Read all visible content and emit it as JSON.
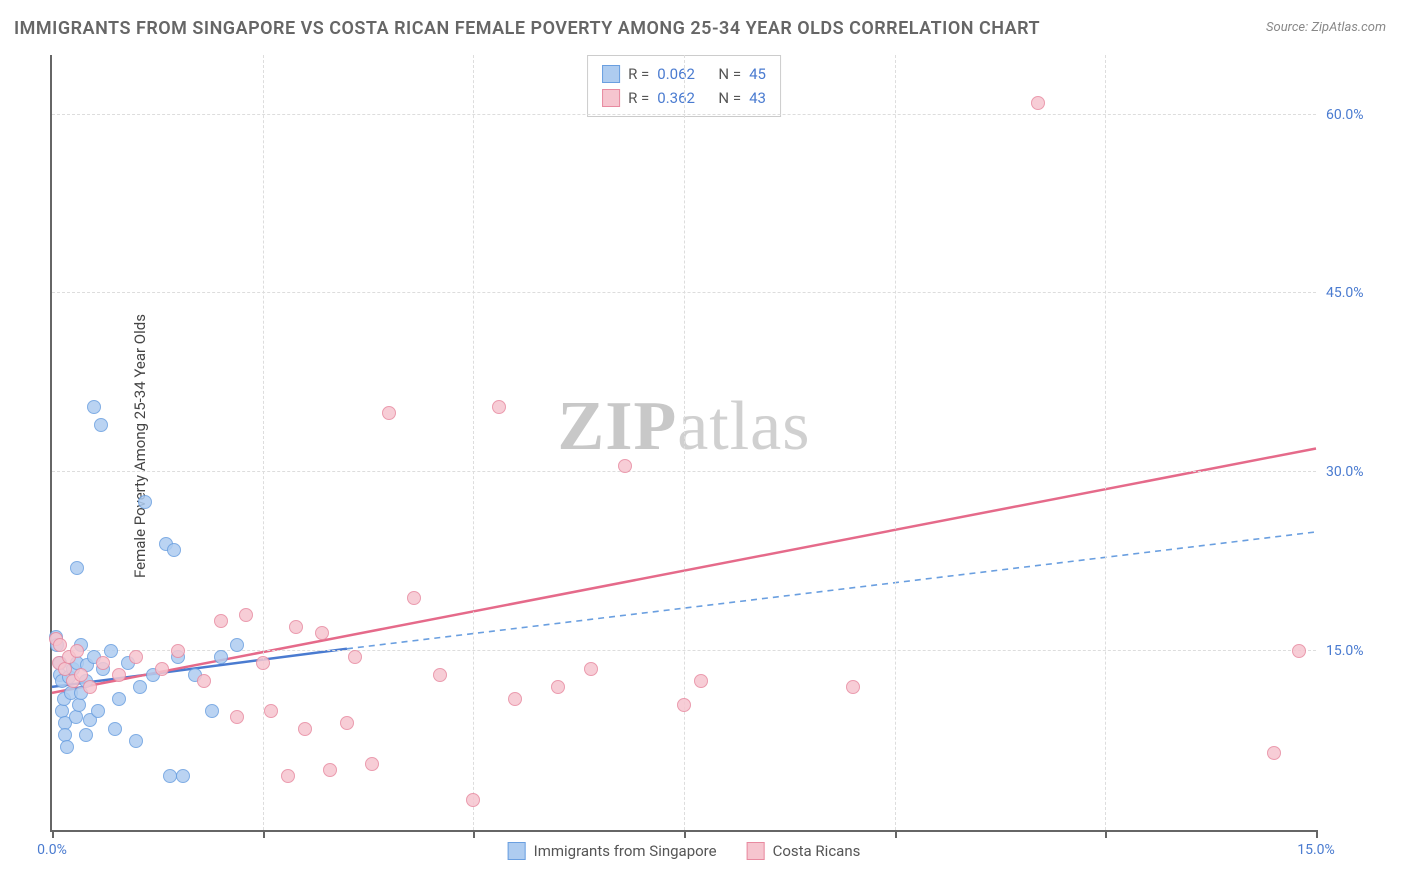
{
  "title": "IMMIGRANTS FROM SINGAPORE VS COSTA RICAN FEMALE POVERTY AMONG 25-34 YEAR OLDS CORRELATION CHART",
  "source_prefix": "Source: ",
  "source_name": "ZipAtlas.com",
  "y_axis_label": "Female Poverty Among 25-34 Year Olds",
  "watermark_bold": "ZIP",
  "watermark_rest": "atlas",
  "chart": {
    "type": "scatter",
    "xlim": [
      0,
      15
    ],
    "ylim": [
      0,
      65
    ],
    "x_ticks": [
      0,
      2.5,
      5,
      7.5,
      10,
      12.5,
      15
    ],
    "x_tick_labels": {
      "0": "0.0%",
      "15": "15.0%"
    },
    "y_ticks": [
      15,
      30,
      45,
      60
    ],
    "y_tick_labels": {
      "15": "15.0%",
      "30": "30.0%",
      "45": "45.0%",
      "60": "60.0%"
    },
    "background_color": "#ffffff",
    "grid_color": "#dddddd",
    "axis_color": "#666666",
    "axis_label_color": "#4a7bd0",
    "marker_radius": 7,
    "series": [
      {
        "id": "singapore",
        "label": "Immigrants from Singapore",
        "fill": "#aeccf0",
        "stroke": "#6a9fe0",
        "r_label": "R =",
        "r_value": "0.062",
        "n_label": "N =",
        "n_value": "45",
        "trend": {
          "x1": 0,
          "y1": 12.0,
          "x2": 3.5,
          "y2": 15.2,
          "dash_x2": 15,
          "dash_y2": 25.0,
          "width": 2.5
        },
        "points": [
          [
            0.05,
            16.2
          ],
          [
            0.06,
            15.5
          ],
          [
            0.1,
            14.0
          ],
          [
            0.1,
            13.0
          ],
          [
            0.12,
            12.5
          ],
          [
            0.12,
            10.0
          ],
          [
            0.14,
            11.0
          ],
          [
            0.15,
            9.0
          ],
          [
            0.16,
            8.0
          ],
          [
            0.18,
            7.0
          ],
          [
            0.2,
            12.8
          ],
          [
            0.22,
            11.5
          ],
          [
            0.25,
            13.5
          ],
          [
            0.28,
            9.5
          ],
          [
            0.3,
            14.0
          ],
          [
            0.3,
            22.0
          ],
          [
            0.32,
            10.5
          ],
          [
            0.35,
            11.5
          ],
          [
            0.35,
            15.5
          ],
          [
            0.4,
            8.0
          ],
          [
            0.4,
            12.5
          ],
          [
            0.42,
            13.8
          ],
          [
            0.45,
            9.2
          ],
          [
            0.5,
            14.5
          ],
          [
            0.5,
            35.5
          ],
          [
            0.55,
            10.0
          ],
          [
            0.58,
            34.0
          ],
          [
            0.6,
            13.5
          ],
          [
            0.7,
            15.0
          ],
          [
            0.75,
            8.5
          ],
          [
            0.8,
            11.0
          ],
          [
            0.9,
            14.0
          ],
          [
            1.0,
            7.5
          ],
          [
            1.05,
            12.0
          ],
          [
            1.1,
            27.5
          ],
          [
            1.2,
            13.0
          ],
          [
            1.35,
            24.0
          ],
          [
            1.4,
            4.5
          ],
          [
            1.45,
            23.5
          ],
          [
            1.5,
            14.5
          ],
          [
            1.55,
            4.5
          ],
          [
            1.7,
            13.0
          ],
          [
            1.9,
            10.0
          ],
          [
            2.0,
            14.5
          ],
          [
            2.2,
            15.5
          ]
        ]
      },
      {
        "id": "costa_rican",
        "label": "Costa Ricans",
        "fill": "#f6c5cf",
        "stroke": "#e88aa0",
        "r_label": "R =",
        "r_value": "0.362",
        "n_label": "N =",
        "n_value": "43",
        "trend": {
          "x1": 0,
          "y1": 11.5,
          "x2": 15,
          "y2": 32.0,
          "width": 2.5
        },
        "points": [
          [
            0.05,
            16.0
          ],
          [
            0.08,
            14.0
          ],
          [
            0.1,
            15.5
          ],
          [
            0.15,
            13.5
          ],
          [
            0.2,
            14.5
          ],
          [
            0.25,
            12.5
          ],
          [
            0.3,
            15.0
          ],
          [
            0.35,
            13.0
          ],
          [
            0.45,
            12.0
          ],
          [
            0.6,
            14.0
          ],
          [
            0.8,
            13.0
          ],
          [
            1.0,
            14.5
          ],
          [
            1.3,
            13.5
          ],
          [
            1.5,
            15.0
          ],
          [
            1.8,
            12.5
          ],
          [
            2.0,
            17.5
          ],
          [
            2.2,
            9.5
          ],
          [
            2.3,
            18.0
          ],
          [
            2.5,
            14.0
          ],
          [
            2.6,
            10.0
          ],
          [
            2.8,
            4.5
          ],
          [
            2.9,
            17.0
          ],
          [
            3.0,
            8.5
          ],
          [
            3.2,
            16.5
          ],
          [
            3.3,
            5.0
          ],
          [
            3.5,
            9.0
          ],
          [
            3.6,
            14.5
          ],
          [
            3.8,
            5.5
          ],
          [
            4.0,
            35.0
          ],
          [
            4.3,
            19.5
          ],
          [
            4.6,
            13.0
          ],
          [
            5.0,
            2.5
          ],
          [
            5.3,
            35.5
          ],
          [
            5.5,
            11.0
          ],
          [
            6.0,
            12.0
          ],
          [
            6.4,
            13.5
          ],
          [
            6.8,
            30.5
          ],
          [
            7.5,
            10.5
          ],
          [
            7.7,
            12.5
          ],
          [
            9.5,
            12.0
          ],
          [
            11.7,
            61.0
          ],
          [
            14.5,
            6.5
          ],
          [
            14.8,
            15.0
          ]
        ]
      }
    ]
  },
  "stats_box_border": "#cccccc"
}
